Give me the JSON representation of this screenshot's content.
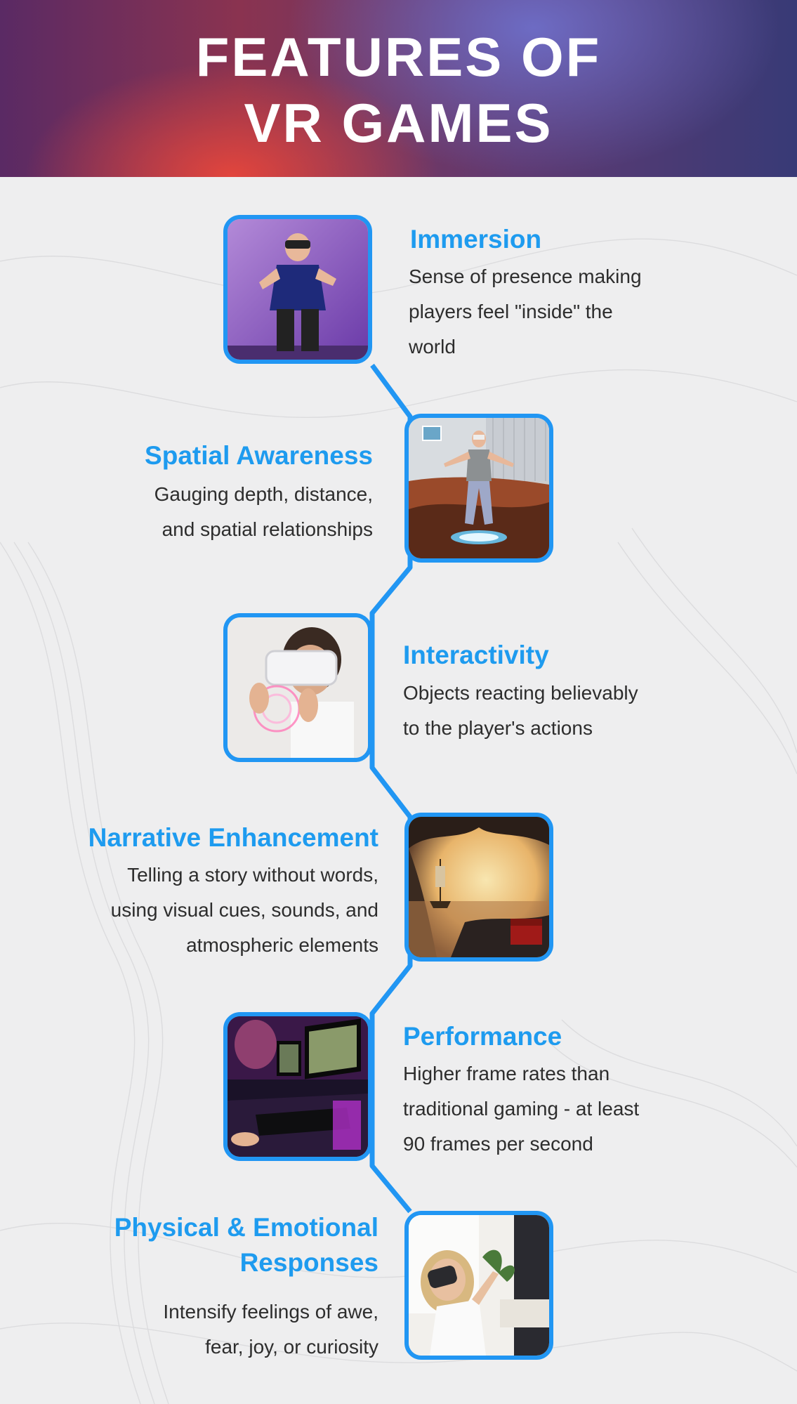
{
  "header": {
    "title_line1": "FEATURES OF",
    "title_line2": "VR GAMES"
  },
  "colors": {
    "accent": "#2196f3",
    "title_text": "#1e9bef",
    "body_text": "#2d2d2d"
  },
  "features": [
    {
      "title": "Immersion",
      "desc_lines": [
        "Sense of presence making",
        "players feel \"inside\" the",
        "world"
      ],
      "image": "man-vr-headset-purple-wall-image"
    },
    {
      "title": "Spatial Awareness",
      "desc_lines": [
        "Gauging depth, distance,",
        "and spatial relationships"
      ],
      "image": "man-floating-vr-portal-image"
    },
    {
      "title": "Interactivity",
      "desc_lines": [
        "Objects reacting believably",
        "to the player's actions"
      ],
      "image": "girl-vr-headset-hologram-image"
    },
    {
      "title": "Narrative Enhancement",
      "desc_lines": [
        "Telling a story without words,",
        "using visual cues, sounds, and",
        "atmospheric elements"
      ],
      "image": "pirate-ship-cave-treasure-image"
    },
    {
      "title": "Performance",
      "desc_lines": [
        "Higher frame rates than",
        "traditional gaming - at least",
        "90 frames per second"
      ],
      "image": "gaming-setup-neon-room-image"
    },
    {
      "title_lines": [
        "Physical & Emotional",
        "Responses"
      ],
      "desc_lines": [
        "Intensify feelings of awe,",
        "fear, joy, or curiosity"
      ],
      "image": "woman-vr-headset-living-room-image"
    }
  ]
}
